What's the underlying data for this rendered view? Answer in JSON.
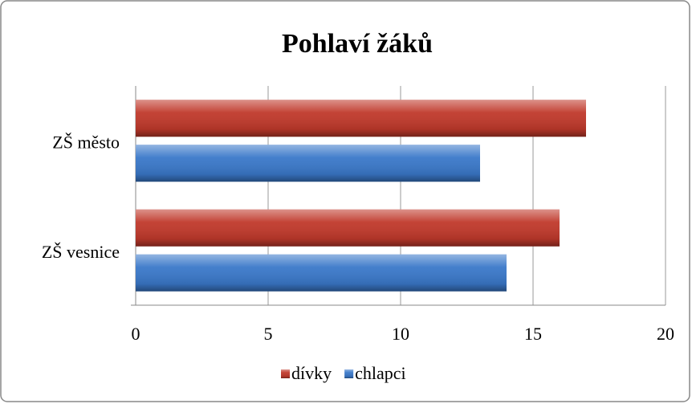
{
  "chart_data": {
    "type": "bar",
    "title": "Pohlaví žáků",
    "categories": [
      "ZŠ město",
      "ZŠ vesnice"
    ],
    "series": [
      {
        "name": "dívky",
        "color": "#c0392b",
        "values": [
          17,
          16
        ]
      },
      {
        "name": "chlapci",
        "color": "#3a78c9",
        "values": [
          13,
          14
        ]
      }
    ],
    "xlim": [
      0,
      20
    ],
    "xticks": [
      0,
      5,
      10,
      15,
      20
    ],
    "grid": true,
    "legend": "bottom"
  }
}
